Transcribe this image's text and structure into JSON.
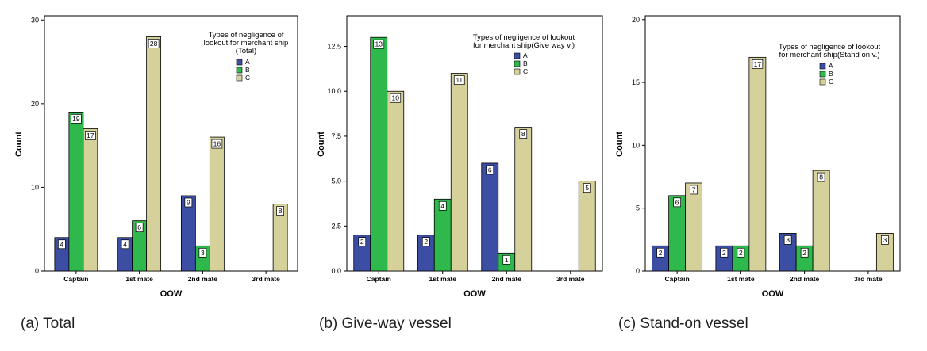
{
  "colors": {
    "A": "#3c4ea3",
    "B": "#2fb84b",
    "C": "#d6d19a",
    "frame": "#000000"
  },
  "chart_data": [
    {
      "type": "bar",
      "caption": "(a) Total",
      "legend_title": [
        "Types of negligence of",
        "lookout for merchant ship",
        "(Total)"
      ],
      "legend_placement": "top-right",
      "xlabel": "OOW",
      "ylabel": "Count",
      "categories": [
        "Captain",
        "1st mate",
        "2nd mate",
        "3rd mate"
      ],
      "ylim": [
        0,
        30.5
      ],
      "yticks": [
        0,
        10,
        20,
        30
      ],
      "ytick_labels": [
        "0",
        "10",
        "20",
        "30"
      ],
      "series": [
        {
          "name": "A",
          "values": [
            4,
            4,
            9,
            null
          ]
        },
        {
          "name": "B",
          "values": [
            19,
            6,
            3,
            null
          ]
        },
        {
          "name": "C",
          "values": [
            17,
            28,
            16,
            8
          ]
        }
      ]
    },
    {
      "type": "bar",
      "caption": "(b) Give-way vessel",
      "legend_title": [
        "Types of negligence of lookout",
        "for merchant ship(Give way v.)"
      ],
      "legend_placement": "top-right",
      "xlabel": "OOW",
      "ylabel": "Count",
      "categories": [
        "Captain",
        "1st mate",
        "2nd mate",
        "3rd mate"
      ],
      "ylim": [
        0,
        14.2
      ],
      "yticks": [
        0,
        2.5,
        5,
        7.5,
        10,
        12.5
      ],
      "ytick_labels": [
        "0.0",
        "2.5",
        "5.0",
        "7.5",
        "10.0",
        "12.5"
      ],
      "series": [
        {
          "name": "A",
          "values": [
            2,
            2,
            6,
            null
          ]
        },
        {
          "name": "B",
          "values": [
            13,
            4,
            1,
            null
          ]
        },
        {
          "name": "C",
          "values": [
            10,
            11,
            8,
            5
          ]
        }
      ]
    },
    {
      "type": "bar",
      "caption": "(c) Stand-on vessel",
      "legend_title": [
        "Types of negligence of lookout",
        "for merchant ship(Stand on v.)"
      ],
      "legend_placement": "top-right",
      "xlabel": "OOW",
      "ylabel": "Count",
      "categories": [
        "Captain",
        "1st mate",
        "2nd mate",
        "3rd mate"
      ],
      "ylim": [
        0,
        20.3
      ],
      "yticks": [
        0,
        5,
        10,
        15,
        20
      ],
      "ytick_labels": [
        "0",
        "5",
        "10",
        "15",
        "20"
      ],
      "series": [
        {
          "name": "A",
          "values": [
            2,
            2,
            3,
            null
          ]
        },
        {
          "name": "B",
          "values": [
            6,
            2,
            2,
            null
          ]
        },
        {
          "name": "C",
          "values": [
            7,
            17,
            8,
            3
          ]
        }
      ]
    }
  ]
}
